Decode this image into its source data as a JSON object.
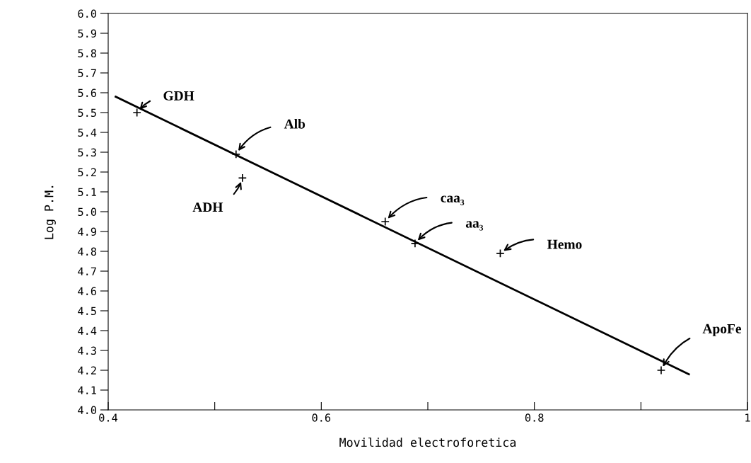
{
  "chart_data": {
    "type": "scatter",
    "xlabel": "Movilidad electroforetica",
    "ylabel": "Log P.M.",
    "series": [
      {
        "color": "#000000",
        "marker": "cross",
        "x": [
          0.427,
          0.52,
          0.526,
          0.66,
          0.688,
          0.768,
          0.919
        ],
        "values": [
          5.5,
          5.29,
          5.17,
          4.95,
          4.84,
          4.79,
          4.2
        ]
      },
      {
        "type": "line",
        "color": "#000000",
        "marker": "none",
        "line_style": "solid",
        "x": [
          0.407,
          0.945
        ],
        "values": [
          5.58,
          4.18
        ]
      }
    ],
    "annotations": [
      {
        "text": "GDH",
        "x": 0.427,
        "y": 5.5
      },
      {
        "text": "Alb",
        "x": 0.52,
        "y": 5.29
      },
      {
        "text": "ADH",
        "x": 0.526,
        "y": 5.17
      },
      {
        "text": "caa₃",
        "x": 0.66,
        "y": 4.95
      },
      {
        "text": "aa₃",
        "x": 0.688,
        "y": 4.84
      },
      {
        "text": "Hemo",
        "x": 0.768,
        "y": 4.79
      },
      {
        "text": "ApoFe",
        "x": 0.919,
        "y": 4.2
      }
    ],
    "xlim": [
      0.4,
      1.0
    ],
    "xticks": [
      0.4,
      {
        "value": 0.5,
        "label": null
      },
      0.6,
      {
        "value": 0.7,
        "label": null
      },
      0.8,
      {
        "value": 0.9,
        "label": null
      },
      {
        "value": 1.0,
        "label": "1"
      }
    ],
    "ylim": [
      4.0,
      6.0
    ],
    "yticks": [
      {
        "value": 4,
        "label": "4.0"
      },
      4.1,
      4.2,
      4.3,
      4.4,
      4.5,
      4.6,
      4.7,
      4.8,
      4.9,
      {
        "value": 5,
        "label": "5.0"
      },
      5.1,
      5.2,
      5.3,
      5.4,
      5.5,
      5.6,
      5.7,
      5.8,
      5.9,
      {
        "value": 6,
        "label": "6.0"
      }
    ],
    "grid": false,
    "legend": false
  }
}
